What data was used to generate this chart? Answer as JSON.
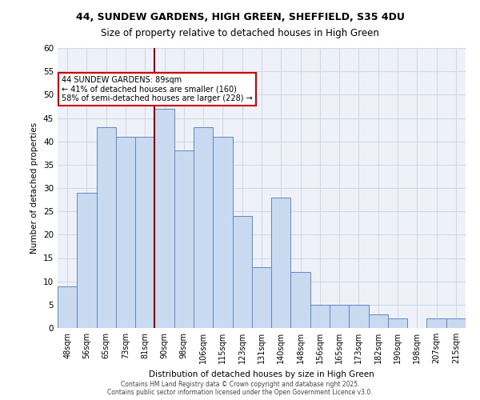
{
  "title_line1": "44, SUNDEW GARDENS, HIGH GREEN, SHEFFIELD, S35 4DU",
  "title_line2": "Size of property relative to detached houses in High Green",
  "xlabel": "Distribution of detached houses by size in High Green",
  "ylabel": "Number of detached properties",
  "categories": [
    "48sqm",
    "56sqm",
    "65sqm",
    "73sqm",
    "81sqm",
    "90sqm",
    "98sqm",
    "106sqm",
    "115sqm",
    "123sqm",
    "131sqm",
    "140sqm",
    "148sqm",
    "156sqm",
    "165sqm",
    "173sqm",
    "182sqm",
    "190sqm",
    "198sqm",
    "207sqm",
    "215sqm"
  ],
  "values": [
    9,
    29,
    43,
    41,
    41,
    47,
    38,
    43,
    41,
    24,
    13,
    28,
    12,
    5,
    5,
    5,
    3,
    2,
    0,
    2,
    2
  ],
  "bar_color": "#c9d9f0",
  "bar_edge_color": "#5b8ac9",
  "red_line_x": 5,
  "ylim": [
    0,
    60
  ],
  "yticks": [
    0,
    5,
    10,
    15,
    20,
    25,
    30,
    35,
    40,
    45,
    50,
    55,
    60
  ],
  "annotation_text": "44 SUNDEW GARDENS: 89sqm\n← 41% of detached houses are smaller (160)\n58% of semi-detached houses are larger (228) →",
  "annotation_box_edge": "#cc0000",
  "grid_color": "#d0d8e8",
  "background_color": "#eef2f8",
  "footer_line1": "Contains HM Land Registry data © Crown copyright and database right 2025.",
  "footer_line2": "Contains public sector information licensed under the Open Government Licence v3.0."
}
